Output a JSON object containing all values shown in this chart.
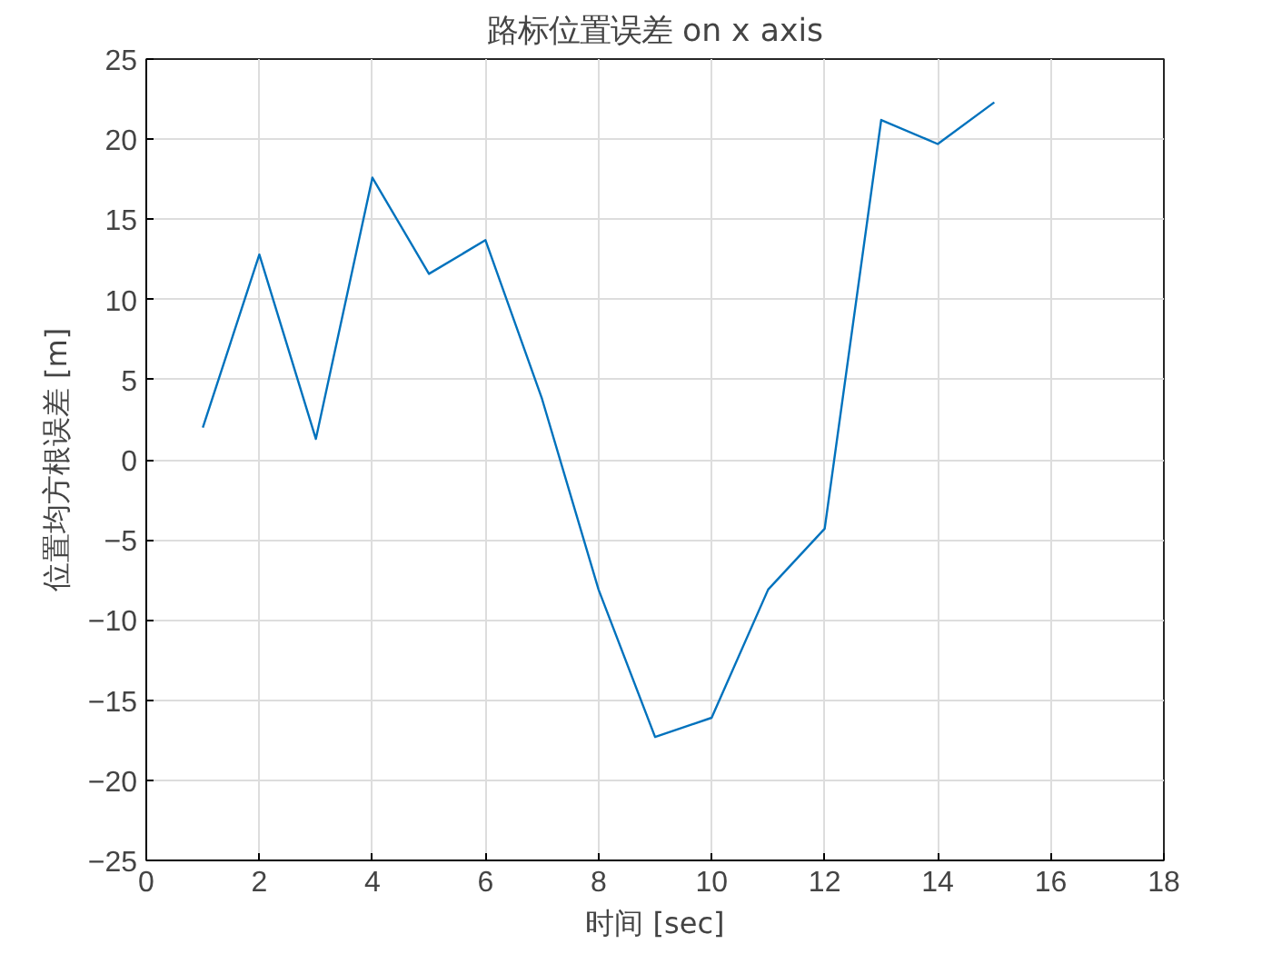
{
  "chart_data": {
    "type": "line",
    "title": "路标位置误差 on x axis",
    "xlabel": "时间 [sec]",
    "ylabel": "位置均方根误差 [m]",
    "x": [
      1,
      2,
      3,
      4,
      5,
      6,
      7,
      8,
      9,
      10,
      11,
      12,
      13,
      14,
      15
    ],
    "series": [
      {
        "color": "#0072bd",
        "values": [
          2.0,
          12.8,
          1.3,
          17.6,
          11.6,
          13.7,
          3.8,
          -8.1,
          -17.3,
          -16.1,
          -8.1,
          -4.3,
          21.2,
          19.7,
          22.3
        ]
      }
    ],
    "xlim": [
      0,
      18
    ],
    "xticks": [
      0,
      2,
      4,
      6,
      8,
      10,
      12,
      14,
      16,
      18
    ],
    "ylim": [
      -25,
      25
    ],
    "yticks": [
      -25,
      -20,
      -15,
      -10,
      -5,
      0,
      5,
      10,
      15,
      20,
      25
    ],
    "grid": true
  }
}
